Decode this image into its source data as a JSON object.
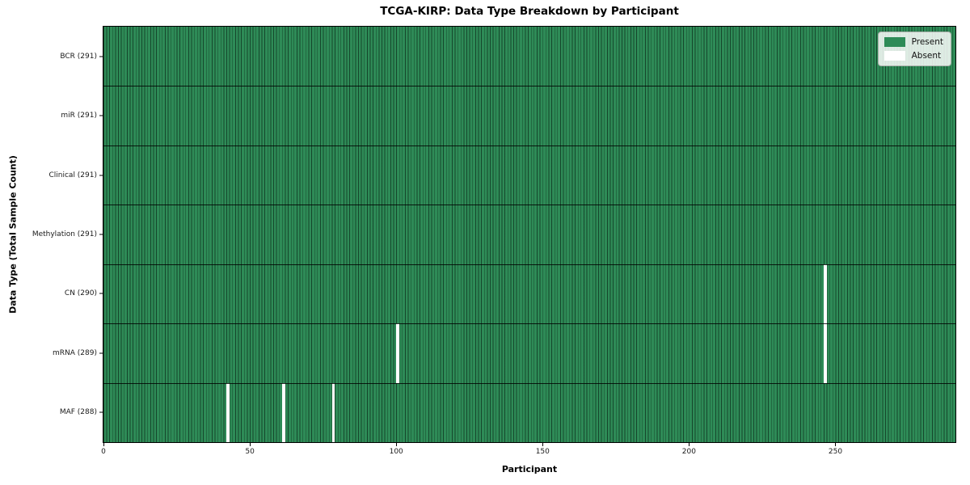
{
  "chart_data": {
    "type": "heatmap",
    "title": "TCGA-KIRP: Data Type Breakdown by Participant",
    "xlabel": "Participant",
    "ylabel": "Data Type (Total Sample Count)",
    "n_participants": 291,
    "x_ticks": [
      0,
      50,
      100,
      150,
      200,
      250
    ],
    "x_range": [
      0,
      291
    ],
    "grid": "cell-edges",
    "legend_position": "upper right",
    "rows": [
      {
        "name": "BCR",
        "label": "BCR (291)",
        "present_count": 291,
        "absent_participants": []
      },
      {
        "name": "miR",
        "label": "miR (291)",
        "present_count": 291,
        "absent_participants": []
      },
      {
        "name": "Clinical",
        "label": "Clinical (291)",
        "present_count": 291,
        "absent_participants": []
      },
      {
        "name": "Methylation",
        "label": "Methylation (291)",
        "present_count": 291,
        "absent_participants": []
      },
      {
        "name": "CN",
        "label": "CN (290)",
        "present_count": 290,
        "absent_participants": [
          246
        ]
      },
      {
        "name": "mRNA",
        "label": "mRNA (289)",
        "present_count": 289,
        "absent_participants": [
          100,
          246
        ]
      },
      {
        "name": "MAF",
        "label": "MAF (288)",
        "present_count": 288,
        "absent_participants": [
          42,
          61,
          78
        ]
      }
    ],
    "legend": [
      {
        "label": "Present",
        "color": "#2E8B57"
      },
      {
        "label": "Absent",
        "color": "#FFFFFF"
      }
    ],
    "colors": {
      "present": "#2E8B57",
      "absent": "#FFFFFF",
      "cell_edge": "rgba(8,34,20,0.65)",
      "row_separator": "#000000"
    }
  }
}
